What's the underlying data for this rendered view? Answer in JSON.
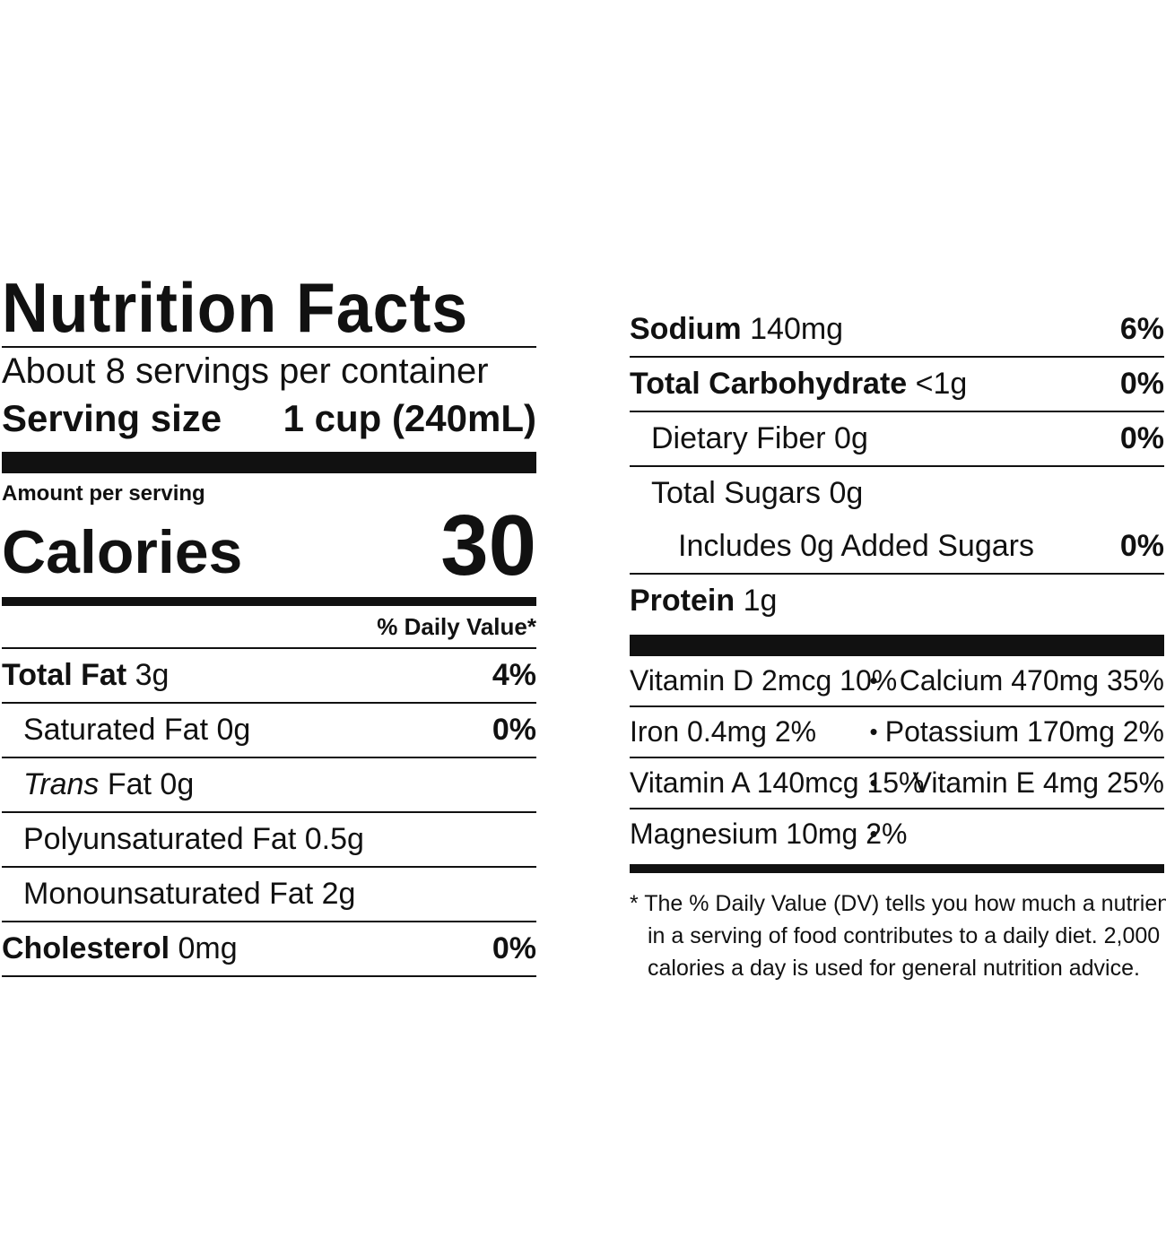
{
  "left": {
    "title": "Nutrition Facts",
    "servings_per_container": "About 8 servings per container",
    "serving_size_label": "Serving size",
    "serving_size_value": "1 cup (240mL)",
    "amount_per_serving": "Amount per serving",
    "calories_label": "Calories",
    "calories_value": "30",
    "daily_value_header": "% Daily Value*",
    "rows": [
      {
        "bold_label": "Total Fat",
        "amount": "3g",
        "dv": "4%"
      },
      {
        "label": "Saturated Fat 0g",
        "dv": "0%"
      },
      {
        "italic_label": "Trans",
        "label_rest": "Fat 0g",
        "dv": ""
      },
      {
        "label": "Polyunsaturated Fat 0.5g",
        "dv": ""
      },
      {
        "label": "Monounsaturated Fat 2g",
        "dv": ""
      },
      {
        "bold_label": "Cholesterol",
        "amount": "0mg",
        "dv": "0%"
      }
    ]
  },
  "right": {
    "rows": [
      {
        "bold_label": "Sodium",
        "amount": "140mg",
        "dv": "6%"
      },
      {
        "bold_label": "Total Carbohydrate",
        "amount": "<1g",
        "dv": "0%"
      },
      {
        "label": "Dietary Fiber 0g",
        "dv": "0%"
      },
      {
        "label": "Total Sugars 0g",
        "dv": ""
      },
      {
        "label": "Includes 0g Added Sugars",
        "dv": "0%"
      },
      {
        "bold_label": "Protein",
        "amount": "1g",
        "dv": ""
      }
    ],
    "vitamins": [
      {
        "left": "Vitamin D 2mcg 10%",
        "right": "Calcium 470mg 35%"
      },
      {
        "left": "Iron 0.4mg 2%",
        "right": "Potassium 170mg 2%"
      },
      {
        "left": "Vitamin A 140mcg 15%",
        "right": "Vitamin E 4mg 25%"
      },
      {
        "left": "Magnesium 10mg 2%",
        "right": ""
      }
    ],
    "bullet": "•",
    "footnote_line1": "* The % Daily Value (DV) tells you how much a nutrient",
    "footnote_line2": "in a serving of food contributes to a daily diet. 2,000",
    "footnote_line3": "calories a day is used for general nutrition advice."
  }
}
